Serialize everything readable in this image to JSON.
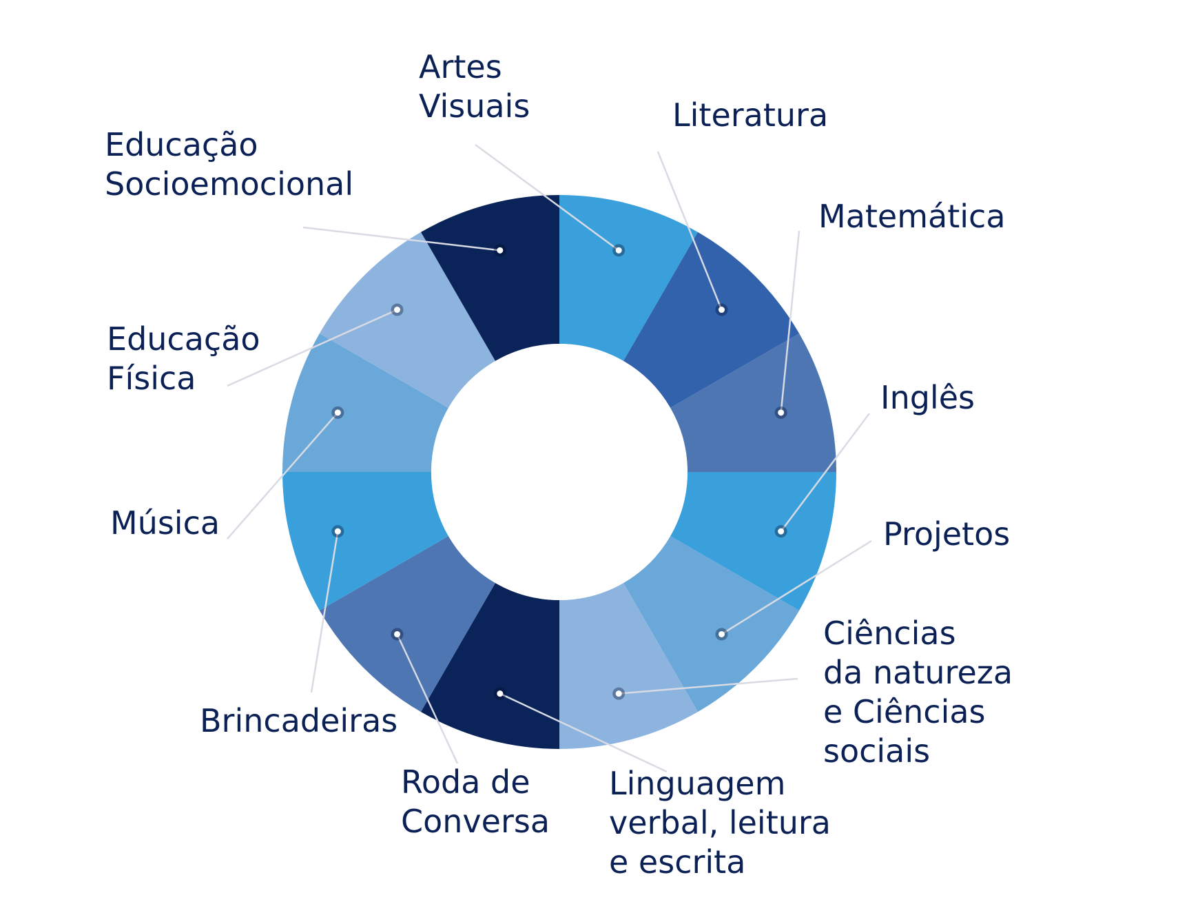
{
  "colors": {
    "text": "#0b2155",
    "leader": "#d8dbe3",
    "dot": "#ffffff",
    "center": "#ffffff"
  },
  "segments": [
    {
      "id": "artes-visuais",
      "label_lines": [
        "Artes",
        "Visuais"
      ],
      "color": "#3aa0db"
    },
    {
      "id": "literatura",
      "label_lines": [
        "Literatura"
      ],
      "color": "#3162ab"
    },
    {
      "id": "matematica",
      "label_lines": [
        "Matemática"
      ],
      "color": "#4d76b3"
    },
    {
      "id": "ingles",
      "label_lines": [
        "Inglês"
      ],
      "color": "#3aa0db"
    },
    {
      "id": "projetos",
      "label_lines": [
        "Projetos"
      ],
      "color": "#69a8d8"
    },
    {
      "id": "ciencias",
      "label_lines": [
        "Ciências",
        "da natureza",
        "e Ciências",
        "sociais"
      ],
      "color": "#8db4df"
    },
    {
      "id": "linguagem",
      "label_lines": [
        "Linguagem",
        "verbal, leitura",
        "e escrita"
      ],
      "color": "#0a2459"
    },
    {
      "id": "roda-de-conversa",
      "label_lines": [
        "Roda de",
        "Conversa"
      ],
      "color": "#4d76b3"
    },
    {
      "id": "brincadeiras",
      "label_lines": [
        "Brincadeiras"
      ],
      "color": "#3aa0db"
    },
    {
      "id": "musica",
      "label_lines": [
        "Música"
      ],
      "color": "#69a8d8"
    },
    {
      "id": "educacao-fisica",
      "label_lines": [
        "Educação",
        "Física"
      ],
      "color": "#8db4df"
    },
    {
      "id": "educacao-socioemocional",
      "label_lines": [
        "Educação",
        "Socioemocional"
      ],
      "color": "#0a2459"
    }
  ]
}
